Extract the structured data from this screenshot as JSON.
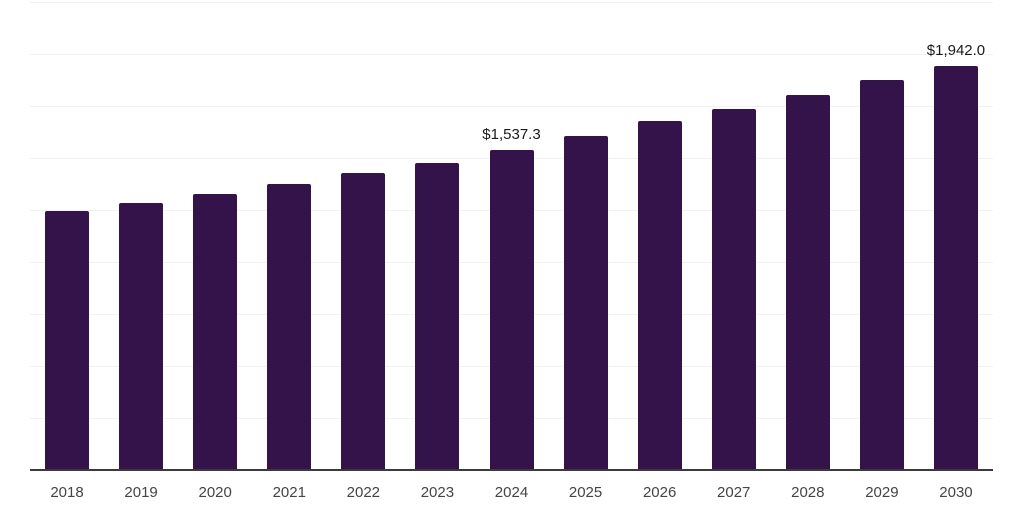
{
  "chart_data": {
    "type": "bar",
    "title": "",
    "xlabel": "",
    "ylabel": "",
    "categories": [
      "2018",
      "2019",
      "2020",
      "2021",
      "2022",
      "2023",
      "2024",
      "2025",
      "2026",
      "2027",
      "2028",
      "2029",
      "2030"
    ],
    "values": [
      1247,
      1285,
      1327,
      1374,
      1429,
      1477,
      1537.3,
      1606,
      1678,
      1737,
      1805,
      1875,
      1942
    ],
    "annotations": [
      {
        "category": "2024",
        "text": "$1,537.3"
      },
      {
        "category": "2030",
        "text": "$1,942.0"
      }
    ],
    "ylim": [
      0,
      2250
    ],
    "gridline_step": 250,
    "grid": "horizontal",
    "legend_position": "none",
    "bar_color": "#33134a"
  },
  "style": {
    "background_color": "#ffffff",
    "gridline_color": "#f2f2f2",
    "axis_color": "#3b3b3b",
    "tick_label_color": "#444444",
    "value_label_color": "#1a1a1a"
  }
}
